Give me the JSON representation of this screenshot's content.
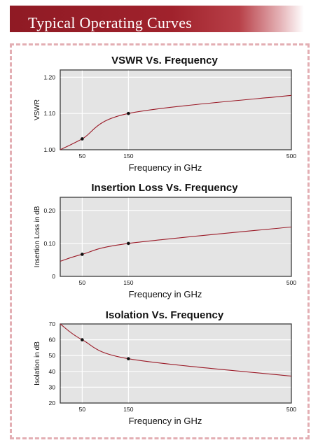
{
  "header": {
    "title": "Typical Operating Curves"
  },
  "colors": {
    "header": "#a0222c",
    "curve": "#9b1b28",
    "plot_bg": "#e4e4e4",
    "border": "#e3aeb3"
  },
  "chart_data": [
    {
      "type": "line",
      "title": "VSWR Vs. Frequency",
      "xlabel": "Frequency in GHz",
      "ylabel": "VSWR",
      "x_ticks": [
        "50",
        "150",
        "500"
      ],
      "y_ticks": [
        "1.00",
        "1.10",
        "1.20"
      ],
      "ylim": [
        1.0,
        1.22
      ],
      "grid": true,
      "series": [
        {
          "points": [
            [
              0,
              1.0
            ],
            [
              50,
              1.03
            ],
            [
              150,
              1.1
            ],
            [
              500,
              1.15
            ]
          ],
          "markers": [
            50,
            150
          ]
        }
      ]
    },
    {
      "type": "line",
      "title": "Insertion Loss Vs. Frequency",
      "xlabel": "Frequency in GHz",
      "ylabel": "Insertion Loss in dB",
      "x_ticks": [
        "50",
        "150",
        "500"
      ],
      "y_ticks": [
        "0",
        "0.10",
        "0.20"
      ],
      "ylim": [
        0,
        0.24
      ],
      "grid": true,
      "series": [
        {
          "points": [
            [
              0,
              0.046
            ],
            [
              50,
              0.067
            ],
            [
              150,
              0.1
            ],
            [
              500,
              0.15
            ]
          ],
          "markers": [
            50,
            150
          ]
        }
      ]
    },
    {
      "type": "line",
      "title": "Isolation Vs. Frequency",
      "xlabel": "Frequency in GHz",
      "ylabel": "Isolation in dB",
      "x_ticks": [
        "50",
        "150",
        "500"
      ],
      "y_ticks": [
        "20",
        "30",
        "40",
        "50",
        "60",
        "70"
      ],
      "ylim": [
        20,
        70
      ],
      "grid": true,
      "series": [
        {
          "points": [
            [
              0,
              70
            ],
            [
              50,
              60
            ],
            [
              150,
              48
            ],
            [
              500,
              37
            ]
          ],
          "markers": [
            50,
            150
          ]
        }
      ]
    }
  ]
}
